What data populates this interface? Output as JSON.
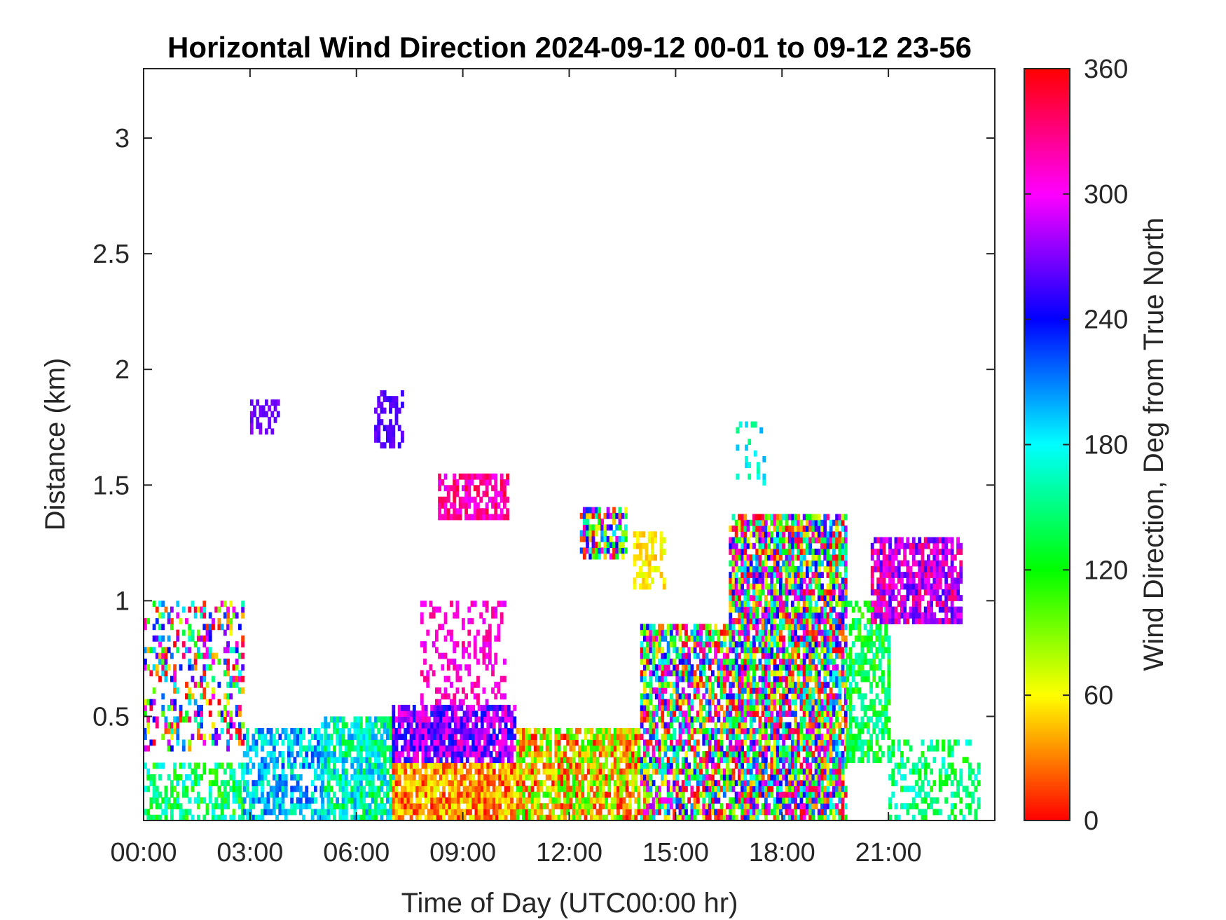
{
  "chart_data": {
    "type": "heatmap",
    "title": "Horizontal Wind Direction 2024-09-12 00-01 to 09-12 23-56",
    "xlabel": "Time of Day (UTC00:00 hr)",
    "ylabel": "Distance (km)",
    "x_tick_labels": [
      "00:00",
      "03:00",
      "06:00",
      "09:00",
      "12:00",
      "15:00",
      "18:00",
      "21:00"
    ],
    "x_tick_values_hr": [
      0,
      3,
      6,
      9,
      12,
      15,
      18,
      21
    ],
    "xlim_hr": [
      0,
      24
    ],
    "y_tick_labels": [
      "0.5",
      "1",
      "1.5",
      "2",
      "2.5",
      "3"
    ],
    "y_tick_values": [
      0.5,
      1,
      1.5,
      2,
      2.5,
      3
    ],
    "ylim": [
      0.05,
      3.3
    ],
    "colorbar": {
      "label": "Wind Direction, Deg from True North",
      "tick_labels": [
        "0",
        "60",
        "120",
        "180",
        "240",
        "300",
        "360"
      ],
      "tick_values": [
        0,
        60,
        120,
        180,
        240,
        300,
        360
      ],
      "range": [
        0,
        360
      ],
      "colormap": "hsv"
    },
    "regions": [
      {
        "t": [
          0.0,
          2.8
        ],
        "h": [
          0.05,
          0.3
        ],
        "dir_range": [
          100,
          190
        ],
        "density": 0.5
      },
      {
        "t": [
          0.0,
          2.8
        ],
        "h": [
          0.35,
          1.0
        ],
        "dir_range": [
          0,
          360
        ],
        "density": 0.35
      },
      {
        "t": [
          2.8,
          5.0
        ],
        "h": [
          0.05,
          0.45
        ],
        "dir_range": [
          150,
          230
        ],
        "density": 0.6
      },
      {
        "t": [
          5.0,
          7.0
        ],
        "h": [
          0.05,
          0.5
        ],
        "dir_range": [
          120,
          210
        ],
        "density": 0.8
      },
      {
        "t": [
          7.0,
          10.5
        ],
        "h": [
          0.05,
          0.3
        ],
        "dir_range": [
          0,
          70
        ],
        "density": 0.9
      },
      {
        "t": [
          7.0,
          10.5
        ],
        "h": [
          0.3,
          0.55
        ],
        "dir_range": [
          230,
          320
        ],
        "density": 0.85
      },
      {
        "t": [
          7.8,
          10.2
        ],
        "h": [
          0.55,
          1.0
        ],
        "dir_range": [
          290,
          330
        ],
        "density": 0.3
      },
      {
        "t": [
          10.5,
          14.0
        ],
        "h": [
          0.05,
          0.45
        ],
        "dir_range": [
          0,
          120
        ],
        "density": 0.8
      },
      {
        "t": [
          14.0,
          16.5
        ],
        "h": [
          0.05,
          0.9
        ],
        "dir_range": [
          0,
          360
        ],
        "density": 0.75
      },
      {
        "t": [
          16.5,
          19.8
        ],
        "h": [
          0.05,
          1.35
        ],
        "dir_range": [
          0,
          360
        ],
        "density": 0.85
      },
      {
        "t": [
          19.8,
          21.0
        ],
        "h": [
          0.3,
          1.0
        ],
        "dir_range": [
          100,
          170
        ],
        "density": 0.6
      },
      {
        "t": [
          20.5,
          23.0
        ],
        "h": [
          0.9,
          1.25
        ],
        "dir_range": [
          250,
          340
        ],
        "density": 0.8
      },
      {
        "t": [
          21.0,
          23.5
        ],
        "h": [
          0.05,
          0.4
        ],
        "dir_range": [
          110,
          180
        ],
        "density": 0.35
      },
      {
        "t": [
          3.0,
          3.8
        ],
        "h": [
          1.72,
          1.86
        ],
        "dir_range": [
          260,
          275
        ],
        "density": 0.5
      },
      {
        "t": [
          6.5,
          7.3
        ],
        "h": [
          1.66,
          1.9
        ],
        "dir_range": [
          250,
          270
        ],
        "density": 0.5
      },
      {
        "t": [
          8.3,
          10.3
        ],
        "h": [
          1.35,
          1.53
        ],
        "dir_range": [
          290,
          350
        ],
        "density": 0.7
      },
      {
        "t": [
          12.3,
          13.6
        ],
        "h": [
          1.18,
          1.4
        ],
        "dir_range": [
          0,
          330
        ],
        "density": 0.7
      },
      {
        "t": [
          13.8,
          14.7
        ],
        "h": [
          1.05,
          1.28
        ],
        "dir_range": [
          40,
          70
        ],
        "density": 0.5
      },
      {
        "t": [
          16.7,
          17.5
        ],
        "h": [
          1.5,
          1.75
        ],
        "dir_range": [
          150,
          200
        ],
        "density": 0.2
      }
    ]
  }
}
